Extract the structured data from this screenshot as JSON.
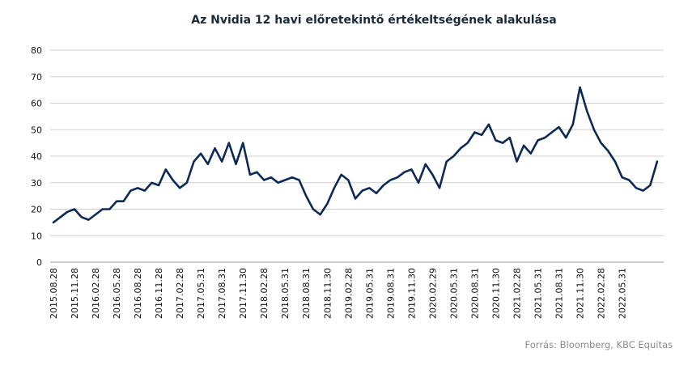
{
  "chart_data": {
    "type": "line",
    "title": "Az Nvidia 12 havi előretekintő értékeltségének alakulása",
    "ylim": [
      0,
      80
    ],
    "yticks": [
      "0",
      "10",
      "20",
      "30",
      "40",
      "50",
      "60",
      "70",
      "80"
    ],
    "grid": true,
    "color": "#0d2a52",
    "x_tick_labels": [
      "2015.08.28",
      "2015.11.28",
      "2016.02.28",
      "2016.05.28",
      "2016.08.28",
      "2016.11.28",
      "2017.02.28",
      "2017.05.31",
      "2017.08.31",
      "2017.11.30",
      "2018.02.28",
      "2018.05.31",
      "2018.08.31",
      "2018.11.30",
      "2019.02.28",
      "2019.05.31",
      "2019.08.31",
      "2019.11.30",
      "2020.02.29",
      "2020.05.31",
      "2020.08.31",
      "2020.11.30",
      "2021.02.28",
      "2021.05.31",
      "2021.08.31",
      "2021.11.30",
      "2022.02.28",
      "2022.05.31"
    ],
    "series": [
      {
        "x": [
          "2015.08",
          "2015.09",
          "2015.10",
          "2015.11",
          "2015.12",
          "2016.01",
          "2016.02",
          "2016.03",
          "2016.04",
          "2016.05",
          "2016.06",
          "2016.07",
          "2016.08",
          "2016.09",
          "2016.10",
          "2016.11",
          "2016.12",
          "2017.01",
          "2017.02",
          "2017.03",
          "2017.04",
          "2017.05",
          "2017.06",
          "2017.07",
          "2017.08",
          "2017.09",
          "2017.10",
          "2017.11",
          "2017.12",
          "2018.01",
          "2018.02",
          "2018.03",
          "2018.04",
          "2018.05",
          "2018.06",
          "2018.07",
          "2018.08",
          "2018.09",
          "2018.10",
          "2018.11",
          "2018.12",
          "2019.01",
          "2019.02",
          "2019.03",
          "2019.04",
          "2019.05",
          "2019.06",
          "2019.07",
          "2019.08",
          "2019.09",
          "2019.10",
          "2019.11",
          "2019.12",
          "2020.01",
          "2020.02",
          "2020.03",
          "2020.04",
          "2020.05",
          "2020.06",
          "2020.07",
          "2020.08",
          "2020.09",
          "2020.10",
          "2020.11",
          "2020.12",
          "2021.01",
          "2021.02",
          "2021.03",
          "2021.04",
          "2021.05",
          "2021.06",
          "2021.07",
          "2021.08",
          "2021.09",
          "2021.10",
          "2021.11",
          "2021.12",
          "2022.01",
          "2022.02",
          "2022.03",
          "2022.04",
          "2022.05",
          "2022.06",
          "2022.07",
          "2022.08",
          "2022.09",
          "2022.10"
        ],
        "values": [
          15,
          17,
          19,
          20,
          17,
          16,
          18,
          20,
          20,
          23,
          23,
          27,
          28,
          27,
          30,
          29,
          35,
          31,
          28,
          30,
          38,
          41,
          37,
          43,
          38,
          45,
          37,
          45,
          33,
          34,
          31,
          32,
          30,
          31,
          32,
          31,
          25,
          20,
          18,
          22,
          28,
          33,
          31,
          24,
          27,
          28,
          26,
          29,
          31,
          32,
          34,
          35,
          30,
          37,
          33,
          28,
          38,
          40,
          43,
          45,
          49,
          48,
          52,
          46,
          45,
          47,
          38,
          44,
          41,
          46,
          47,
          49,
          51,
          47,
          52,
          66,
          57,
          50,
          45,
          42,
          38,
          32,
          31,
          28,
          27,
          29,
          38
        ]
      }
    ]
  },
  "footer": {
    "source": "Forrás: Bloomberg,  KBC Equitas"
  }
}
